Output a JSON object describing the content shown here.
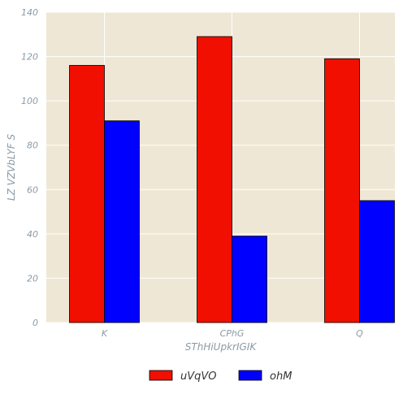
{
  "chart_data": {
    "type": "bar",
    "categories": [
      "K",
      "CPhG",
      "Q"
    ],
    "series": [
      {
        "name": "uVqVO",
        "values": [
          116,
          129,
          119
        ],
        "color": "#f00f00"
      },
      {
        "name": "ohM",
        "values": [
          91,
          39,
          55
        ],
        "color": "#0000ff"
      }
    ],
    "title": "",
    "xlabel": "SThHiUpkrIGIK",
    "ylabel": "LZ VZVbLYF S",
    "ylim": [
      0,
      140
    ],
    "yticks": [
      0,
      20,
      40,
      60,
      80,
      100,
      120,
      140
    ],
    "grid": true,
    "legend_position": "bottom",
    "background_color": "#efe7d5",
    "grid_color": "#ffffff"
  }
}
